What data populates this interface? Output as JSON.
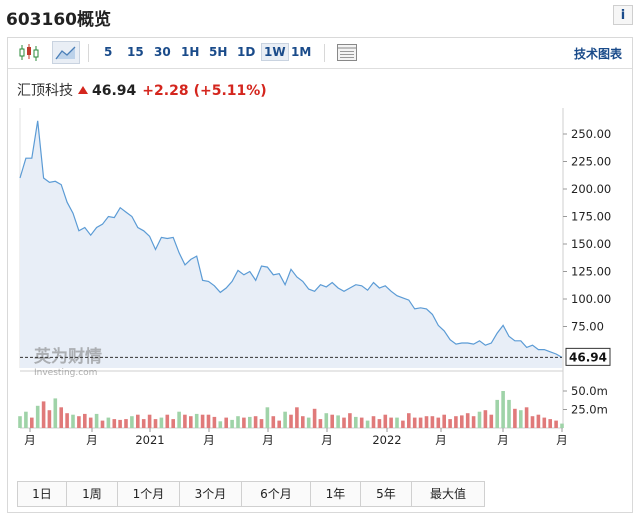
{
  "header": {
    "title": "603160概览",
    "info_icon": "i"
  },
  "toolbar": {
    "intervals": [
      "5",
      "15",
      "30",
      "1H",
      "5H",
      "1D",
      "1W",
      "1M"
    ],
    "active_interval": "1W",
    "tech_chart_label": "技术图表"
  },
  "quote": {
    "name": "汇顶科技",
    "price": "46.94",
    "change": "+2.28",
    "change_pct": "(+5.11%)",
    "up_color": "#d4261e"
  },
  "watermark": {
    "brand": "英为财情",
    "sub": "Investing.com"
  },
  "chart_data": {
    "type": "area",
    "price_axis": {
      "ticks": [
        "250.00",
        "225.00",
        "200.00",
        "175.00",
        "150.00",
        "125.00",
        "100.00",
        "75.00"
      ],
      "last_label": "46.94"
    },
    "volume_axis": {
      "ticks": [
        "50.0m",
        "25.0m"
      ]
    },
    "x_labels": [
      "月",
      "月",
      "2021",
      "月",
      "月",
      "月",
      "2022",
      "月",
      "月",
      "月"
    ],
    "prices": [
      210,
      228,
      228,
      262,
      210,
      206,
      207,
      204,
      188,
      178,
      162,
      165,
      158,
      165,
      168,
      175,
      174,
      183,
      179,
      175,
      165,
      162,
      157,
      145,
      156,
      155,
      156,
      142,
      131,
      136,
      139,
      117,
      116,
      112,
      106,
      110,
      116,
      126,
      122,
      125,
      117,
      130,
      129,
      122,
      123,
      113,
      127,
      120,
      116,
      109,
      107,
      113,
      111,
      115,
      110,
      107,
      110,
      113,
      112,
      108,
      115,
      110,
      112,
      107,
      103,
      101,
      99,
      91,
      92,
      91,
      86,
      76,
      71,
      63,
      59,
      60,
      60,
      59,
      62,
      58,
      60,
      69,
      76,
      66,
      62,
      62,
      56,
      58,
      54,
      54,
      52,
      50,
      46.94
    ],
    "volumes": [
      16,
      22,
      14,
      30,
      36,
      24,
      40,
      28,
      20,
      18,
      16,
      19,
      14,
      19,
      10,
      14,
      12,
      11,
      12,
      16,
      18,
      12,
      18,
      12,
      14,
      18,
      12,
      22,
      18,
      16,
      19,
      18,
      18,
      15,
      9,
      14,
      11,
      16,
      14,
      15,
      16,
      12,
      28,
      16,
      10,
      22,
      18,
      28,
      16,
      14,
      26,
      12,
      20,
      18,
      17,
      14,
      20,
      15,
      14,
      10,
      16,
      12,
      18,
      14,
      14,
      10,
      20,
      14,
      14,
      16,
      16,
      14,
      18,
      12,
      16,
      17,
      20,
      16,
      22,
      24,
      18,
      38,
      50,
      38,
      26,
      24,
      28,
      16,
      18,
      14,
      12,
      10,
      6
    ],
    "volume_up": [
      true,
      true,
      false,
      true,
      false,
      false,
      true,
      false,
      false,
      true,
      false,
      false,
      false,
      true,
      false,
      true,
      false,
      false,
      false,
      true,
      false,
      false,
      false,
      false,
      true,
      false,
      false,
      true,
      false,
      false,
      true,
      false,
      false,
      false,
      true,
      false,
      true,
      true,
      false,
      true,
      false,
      false,
      true,
      false,
      false,
      true,
      false,
      false,
      false,
      true,
      false,
      false,
      true,
      false,
      true,
      false,
      false,
      true,
      false,
      true,
      false,
      false,
      false,
      false,
      true,
      false,
      false,
      false,
      false,
      false,
      false,
      false,
      false,
      false,
      false,
      false,
      false,
      false,
      true,
      false,
      false,
      true,
      true,
      true,
      false,
      true,
      false,
      false,
      false,
      false,
      false,
      false,
      true
    ],
    "colors": {
      "line": "#5b9bd5",
      "fill": "#e8eef7",
      "vol_up": "#9fd3a8",
      "vol_down": "#e07a7a"
    }
  },
  "range_buttons": [
    "1日",
    "1周",
    "1个月",
    "3个月",
    "6个月",
    "1年",
    "5年",
    "最大值"
  ]
}
